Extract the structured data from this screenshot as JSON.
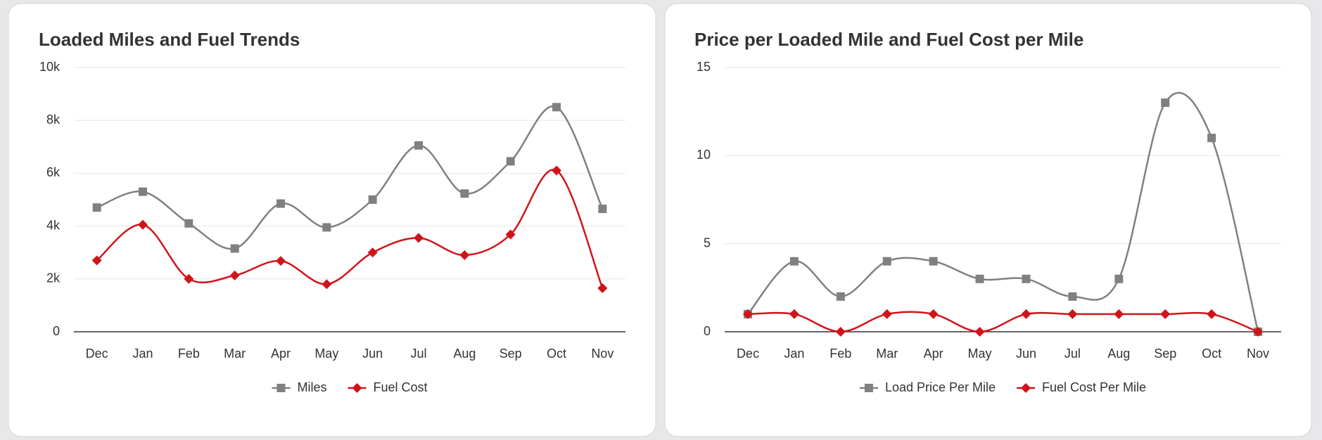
{
  "chart_data": [
    {
      "type": "line",
      "title": "Loaded Miles and Fuel Trends",
      "categories": [
        "Dec",
        "Jan",
        "Feb",
        "Mar",
        "Apr",
        "May",
        "Jun",
        "Jul",
        "Aug",
        "Sep",
        "Oct",
        "Nov"
      ],
      "series": [
        {
          "name": "Miles",
          "color": "#808080",
          "marker": "square",
          "values": [
            4700,
            5300,
            4100,
            3150,
            4850,
            3950,
            5000,
            7050,
            5230,
            6450,
            8500,
            4650
          ]
        },
        {
          "name": "Fuel Cost",
          "color": "#d0141a",
          "marker": "diamond",
          "values": [
            2700,
            4050,
            2000,
            2130,
            2680,
            1800,
            3000,
            3550,
            2900,
            3680,
            6100,
            1650
          ]
        }
      ],
      "ylim": [
        0,
        10000
      ],
      "yticks": [
        0,
        {
          "value": 2000,
          "label": "2k"
        },
        {
          "value": 4000,
          "label": "4k"
        },
        {
          "value": 6000,
          "label": "6k"
        },
        {
          "value": 8000,
          "label": "8k"
        },
        {
          "value": 10000,
          "label": "10k"
        }
      ],
      "grid": true
    },
    {
      "type": "line",
      "title": "Price per Loaded Mile and Fuel Cost per Mile",
      "categories": [
        "Dec",
        "Jan",
        "Feb",
        "Mar",
        "Apr",
        "May",
        "Jun",
        "Jul",
        "Aug",
        "Sep",
        "Oct",
        "Nov"
      ],
      "series": [
        {
          "name": "Load Price Per Mile",
          "color": "#808080",
          "marker": "square",
          "values": [
            1,
            4,
            2,
            4,
            4,
            3,
            3,
            2,
            3,
            13,
            11,
            0
          ]
        },
        {
          "name": "Fuel Cost Per Mile",
          "color": "#d0141a",
          "marker": "diamond",
          "values": [
            1,
            1,
            0,
            1,
            1,
            0,
            1,
            1,
            1,
            1,
            1,
            0
          ]
        }
      ],
      "ylim": [
        0,
        15
      ],
      "yticks": [
        0,
        5,
        10,
        15
      ],
      "grid": true
    }
  ]
}
